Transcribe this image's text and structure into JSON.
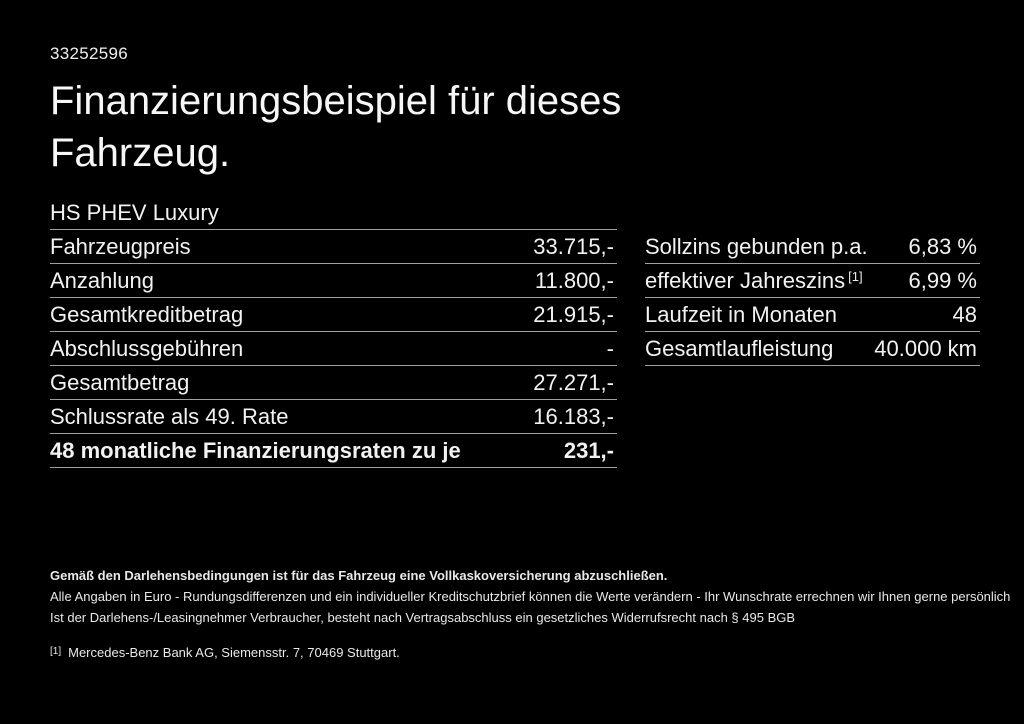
{
  "header": {
    "doc_id": "33252596",
    "title_line1": "Finanzierungsbeispiel für dieses",
    "title_line2": "Fahrzeug.",
    "subtitle": "HS PHEV Luxury"
  },
  "financing_table": {
    "rows": [
      {
        "label": "Fahrzeugpreis",
        "value": "33.715,-"
      },
      {
        "label": "Anzahlung",
        "value": "11.800,-"
      },
      {
        "label": "Gesamtkreditbetrag",
        "value": "21.915,-"
      },
      {
        "label": "Abschlussgebühren",
        "value": "-"
      },
      {
        "label": "Gesamtbetrag",
        "value": "27.271,-"
      },
      {
        "label": "Schlussrate als 49. Rate",
        "value": "16.183,-"
      },
      {
        "label": "48 monatliche Finanzierungsraten zu je",
        "value": "231,-"
      }
    ]
  },
  "conditions_table": {
    "rows": [
      {
        "label": "Sollzins gebunden p.a.",
        "value": "6,83 %"
      },
      {
        "label": "effektiver Jahreszins",
        "sup": "[1]",
        "value": "6,99 %"
      },
      {
        "label": "Laufzeit in Monaten",
        "value": "48"
      },
      {
        "label": "Gesamtlaufleistung",
        "value": "40.000 km"
      }
    ]
  },
  "footer": {
    "insurance_note": "Gemäß den Darlehensbedingungen ist für das Fahrzeug eine Vollkaskoversicherung abzuschließen.",
    "disclaimer_line": "Alle Angaben in Euro - Rundungsdifferenzen und ein individueller Kreditschutzbrief können die Werte verändern - Ihr Wunschrate errechnen wir Ihnen gerne persönlich",
    "consumer_rights_line": "Ist der Darlehens-/Leasingnehmer Verbraucher, besteht nach Vertragsabschluss ein gesetzliches Widerrufsrecht nach § 495 BGB",
    "footnote_marker": "[1]",
    "footnote_text": "Mercedes-Benz Bank AG, Siemensstr. 7, 70469 Stuttgart."
  },
  "colors": {
    "background": "#000000",
    "text": "#f2f2f2",
    "divider": "#a0a0a0"
  }
}
